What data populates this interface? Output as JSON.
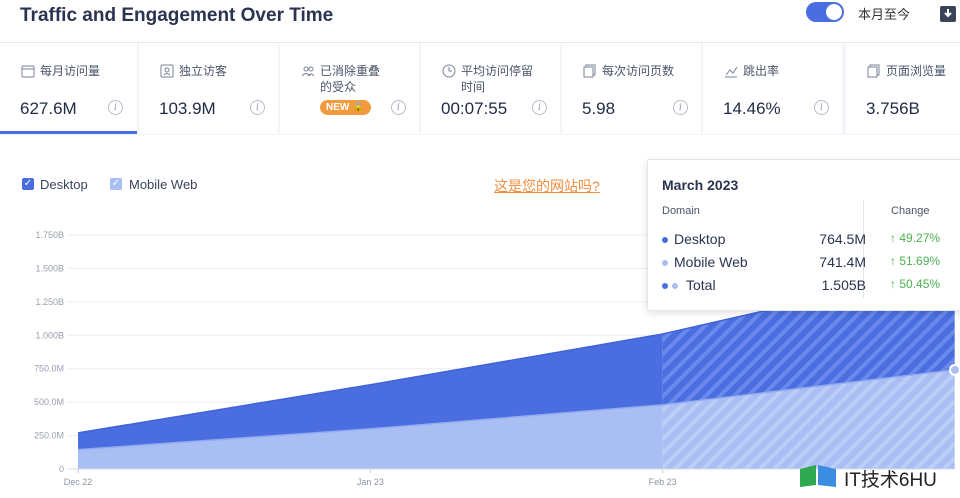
{
  "header": {
    "title": "Traffic and Engagement Over Time",
    "toggle_label": "本月至今",
    "toggle_on": true
  },
  "metrics": [
    {
      "label": "每月访问量",
      "value": "627.6M",
      "icon": "calendar-icon",
      "active": true
    },
    {
      "label": "独立访客",
      "value": "103.9M",
      "icon": "user-card-icon"
    },
    {
      "label": "已消除重叠的受众",
      "value": "",
      "icon": "users-icon",
      "badge": "NEW"
    },
    {
      "label": "平均访问停留时间",
      "value": "00:07:55",
      "icon": "clock-icon"
    },
    {
      "label": "每次访问页数",
      "value": "5.98",
      "icon": "pages-icon"
    },
    {
      "label": "跳出率",
      "value": "14.46%",
      "icon": "bounce-icon"
    },
    {
      "label": "页面浏览量",
      "value": "3.756B",
      "icon": "pages-icon"
    }
  ],
  "legend": [
    {
      "name": "Desktop",
      "color": "#4a6ee0",
      "checked": true
    },
    {
      "name": "Mobile Web",
      "color": "#a9bff4",
      "checked": true
    }
  ],
  "site_link": "这是您的网站吗?",
  "tooltip": {
    "title": "March 2023",
    "domain_header": "Domain",
    "change_header": "Change",
    "rows": [
      {
        "name": "Desktop",
        "value": "764.5M",
        "change": "49.27%",
        "color": "#4a6ee0"
      },
      {
        "name": "Mobile Web",
        "value": "741.4M",
        "change": "51.69%",
        "color": "#a9bff4"
      },
      {
        "name": "Total",
        "value": "1.505B",
        "change": "50.45%",
        "color": "#4a6ee0"
      }
    ]
  },
  "chart_data": {
    "type": "area",
    "stacked": true,
    "x": [
      "Dec 22",
      "Jan 23",
      "Feb 23",
      "Mar 23"
    ],
    "x_tick_labels": [
      "Dec 22",
      "Jan 23",
      "Feb 23"
    ],
    "y_tick_labels": [
      "0",
      "250.0M",
      "500.0M",
      "750.0M",
      "1.000B",
      "1.250B",
      "1.500B",
      "1.750B"
    ],
    "ylim": [
      0,
      1750000000
    ],
    "series": [
      {
        "name": "Mobile Web",
        "color": "#a9bff4",
        "values": [
          145000000,
          300000000,
          480000000,
          741400000
        ]
      },
      {
        "name": "Desktop",
        "color": "#4a6ee0",
        "values": [
          125000000,
          330000000,
          530000000,
          764500000
        ]
      }
    ],
    "grid": true,
    "legend": "top-left"
  },
  "watermark": {
    "text": "IT技术6HU"
  }
}
